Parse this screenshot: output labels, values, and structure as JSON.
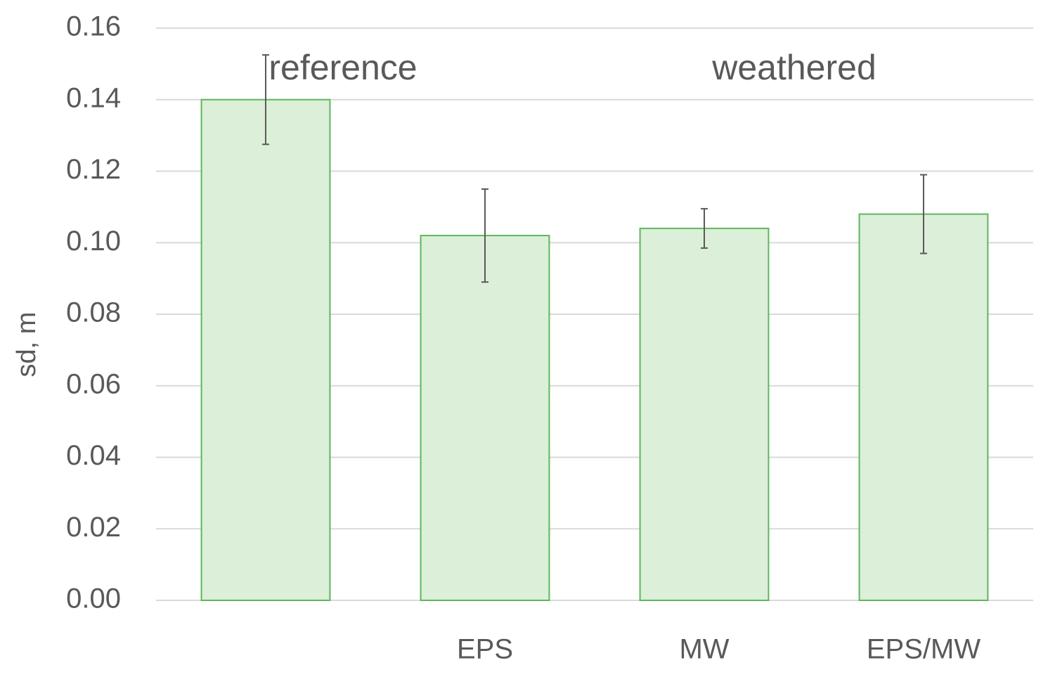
{
  "chart_data": {
    "type": "bar",
    "ylabel": "sd, m",
    "annotations": [
      "reference",
      "weathered"
    ],
    "categories": [
      null,
      "EPS",
      "MW",
      "EPS/MW"
    ],
    "values": [
      0.14,
      0.102,
      0.104,
      0.108
    ],
    "errors": [
      0.0125,
      0.013,
      0.0055,
      0.011
    ],
    "color": "#dcefd8",
    "edgecolor": "#5cb85c",
    "ylim": [
      0,
      0.16
    ],
    "yticks": [
      {
        "value": 0,
        "label": "0.00"
      },
      {
        "value": 0.02,
        "label": "0.02"
      },
      {
        "value": 0.04,
        "label": "0.04"
      },
      {
        "value": 0.06,
        "label": "0.06"
      },
      {
        "value": 0.08,
        "label": "0.08"
      },
      {
        "value": 0.1,
        "label": "0.10"
      },
      {
        "value": 0.12,
        "label": "0.12"
      },
      {
        "value": 0.14,
        "label": "0.14"
      },
      {
        "value": 0.16,
        "label": "0.16"
      }
    ],
    "grid": true
  }
}
